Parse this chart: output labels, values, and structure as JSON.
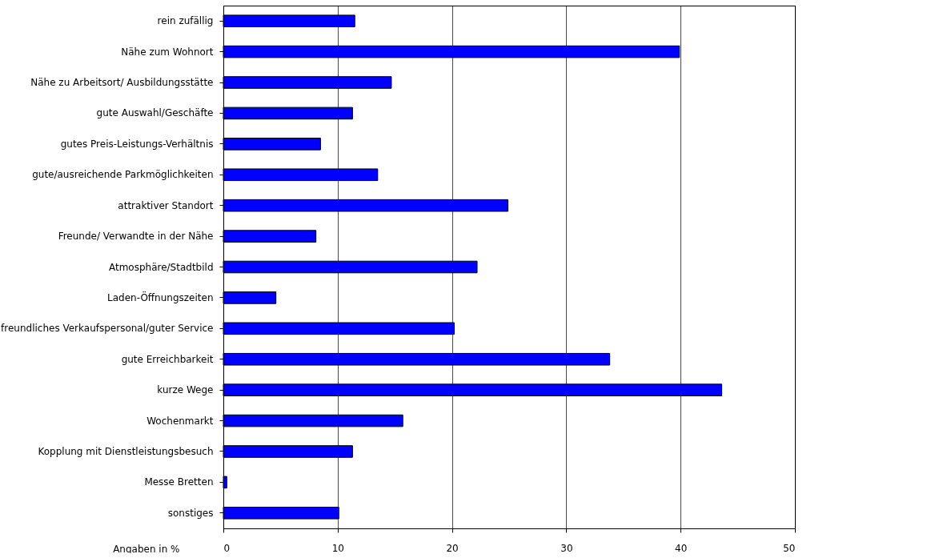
{
  "chart_data": {
    "type": "bar",
    "orientation": "horizontal",
    "xlabel": "Angaben in %",
    "categories": [
      "rein zufällig",
      "Nähe zum Wohnort",
      "Nähe zu Arbeitsort/ Ausbildungsstätte",
      "gute Auswahl/Geschäfte",
      "gutes Preis-Leistungs-Verhältnis",
      "gute/ausreichende Parkmöglichkeiten",
      "attraktiver Standort",
      "Freunde/ Verwandte in der Nähe",
      "Atmosphäre/Stadtbild",
      "Laden-Öffnungszeiten",
      "freundliches Verkaufspersonal/guter Service",
      "gute Erreichbarkeit",
      "kurze Wege",
      "Wochenmarkt",
      "Kopplung mit Dienstleistungsbesuch",
      "Messe Bretten",
      "sonstiges"
    ],
    "values": [
      11.5,
      39.9,
      14.7,
      11.3,
      8.5,
      13.5,
      24.9,
      8.1,
      22.2,
      4.6,
      20.2,
      33.8,
      43.6,
      15.7,
      11.3,
      0.3,
      10.1
    ],
    "color": "#0000ff",
    "xlim": [
      0,
      50
    ],
    "xticks": [
      0,
      10,
      20,
      30,
      40,
      50
    ],
    "grid": "x"
  }
}
